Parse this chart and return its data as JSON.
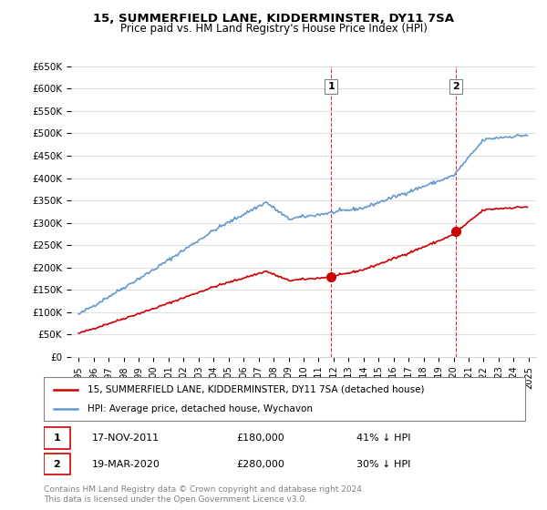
{
  "title": "15, SUMMERFIELD LANE, KIDDERMINSTER, DY11 7SA",
  "subtitle": "Price paid vs. HM Land Registry's House Price Index (HPI)",
  "property_label": "15, SUMMERFIELD LANE, KIDDERMINSTER, DY11 7SA (detached house)",
  "hpi_label": "HPI: Average price, detached house, Wychavon",
  "sale1_date": "17-NOV-2011",
  "sale1_price": 180000,
  "sale1_pct": "41% ↓ HPI",
  "sale2_date": "19-MAR-2020",
  "sale2_price": 280000,
  "sale2_pct": "30% ↓ HPI",
  "footer": "Contains HM Land Registry data © Crown copyright and database right 2024.\nThis data is licensed under the Open Government Licence v3.0.",
  "property_color": "#cc0000",
  "hpi_color": "#6699cc",
  "ylim_max": 650000,
  "annotation_color": "#cc0000",
  "dashed_line_color": "#cc0000"
}
